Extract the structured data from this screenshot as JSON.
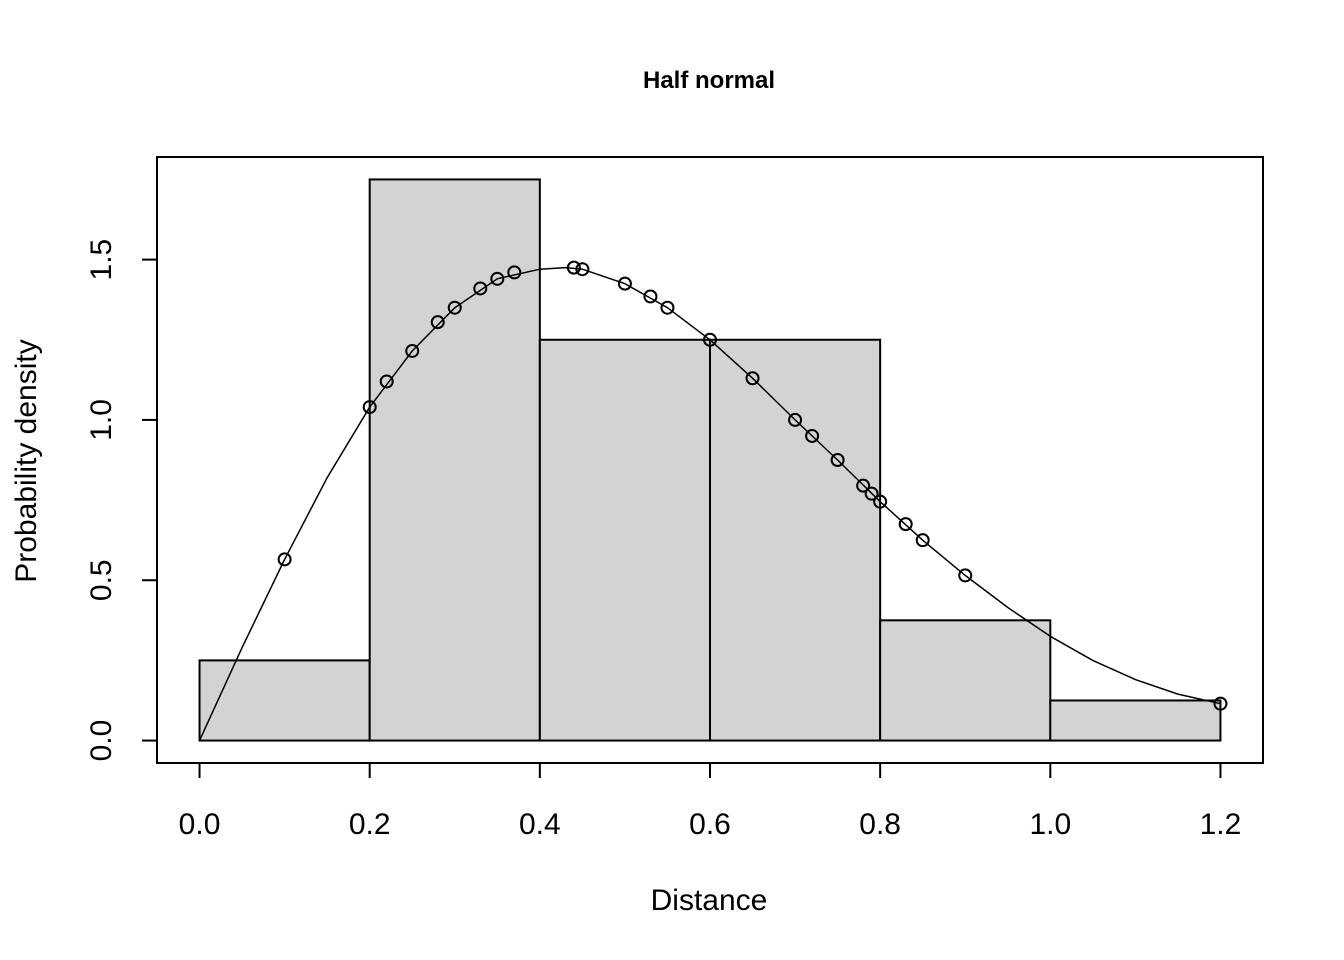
{
  "chart_data": {
    "type": "bar",
    "title": "Half normal",
    "xlabel": "Distance",
    "ylabel": "Probability density",
    "xlim": [
      -0.05,
      1.25
    ],
    "ylim": [
      -0.07,
      1.82
    ],
    "x_ticks": [
      0.0,
      0.2,
      0.4,
      0.6,
      0.8,
      1.0,
      1.2
    ],
    "x_tick_labels": [
      "0.0",
      "0.2",
      "0.4",
      "0.6",
      "0.8",
      "1.0",
      "1.2"
    ],
    "y_ticks": [
      0.0,
      0.5,
      1.0,
      1.5
    ],
    "y_tick_labels": [
      "0.0",
      "0.5",
      "1.0",
      "1.5"
    ],
    "bar_color": "#d3d3d3",
    "histogram": {
      "bins": [
        {
          "x0": 0.0,
          "x1": 0.2,
          "value": 0.25
        },
        {
          "x0": 0.2,
          "x1": 0.4,
          "value": 1.75
        },
        {
          "x0": 0.4,
          "x1": 0.6,
          "value": 1.25
        },
        {
          "x0": 0.6,
          "x1": 0.8,
          "value": 1.25
        },
        {
          "x0": 0.8,
          "x1": 1.0,
          "value": 0.375
        },
        {
          "x0": 1.0,
          "x1": 1.2,
          "value": 0.125
        }
      ]
    },
    "points": [
      {
        "x": 0.1,
        "y": 0.565
      },
      {
        "x": 0.2,
        "y": 1.04
      },
      {
        "x": 0.22,
        "y": 1.12
      },
      {
        "x": 0.25,
        "y": 1.215
      },
      {
        "x": 0.28,
        "y": 1.305
      },
      {
        "x": 0.3,
        "y": 1.35
      },
      {
        "x": 0.33,
        "y": 1.41
      },
      {
        "x": 0.35,
        "y": 1.44
      },
      {
        "x": 0.37,
        "y": 1.46
      },
      {
        "x": 0.44,
        "y": 1.475
      },
      {
        "x": 0.45,
        "y": 1.47
      },
      {
        "x": 0.5,
        "y": 1.425
      },
      {
        "x": 0.53,
        "y": 1.385
      },
      {
        "x": 0.55,
        "y": 1.35
      },
      {
        "x": 0.6,
        "y": 1.25
      },
      {
        "x": 0.65,
        "y": 1.13
      },
      {
        "x": 0.7,
        "y": 1.0
      },
      {
        "x": 0.72,
        "y": 0.95
      },
      {
        "x": 0.75,
        "y": 0.875
      },
      {
        "x": 0.78,
        "y": 0.795
      },
      {
        "x": 0.79,
        "y": 0.77
      },
      {
        "x": 0.8,
        "y": 0.745
      },
      {
        "x": 0.83,
        "y": 0.675
      },
      {
        "x": 0.85,
        "y": 0.625
      },
      {
        "x": 0.9,
        "y": 0.515
      },
      {
        "x": 1.2,
        "y": 0.115
      }
    ],
    "curve": {
      "x": [
        0.0,
        0.05,
        0.1,
        0.15,
        0.2,
        0.25,
        0.3,
        0.35,
        0.4,
        0.43,
        0.45,
        0.5,
        0.55,
        0.6,
        0.65,
        0.7,
        0.75,
        0.8,
        0.85,
        0.9,
        0.95,
        1.0,
        1.05,
        1.1,
        1.15,
        1.2
      ],
      "y": [
        0.0,
        0.29,
        0.565,
        0.82,
        1.04,
        1.215,
        1.35,
        1.44,
        1.47,
        1.475,
        1.47,
        1.425,
        1.35,
        1.25,
        1.13,
        1.0,
        0.875,
        0.745,
        0.625,
        0.515,
        0.415,
        0.325,
        0.25,
        0.19,
        0.145,
        0.115
      ]
    }
  }
}
